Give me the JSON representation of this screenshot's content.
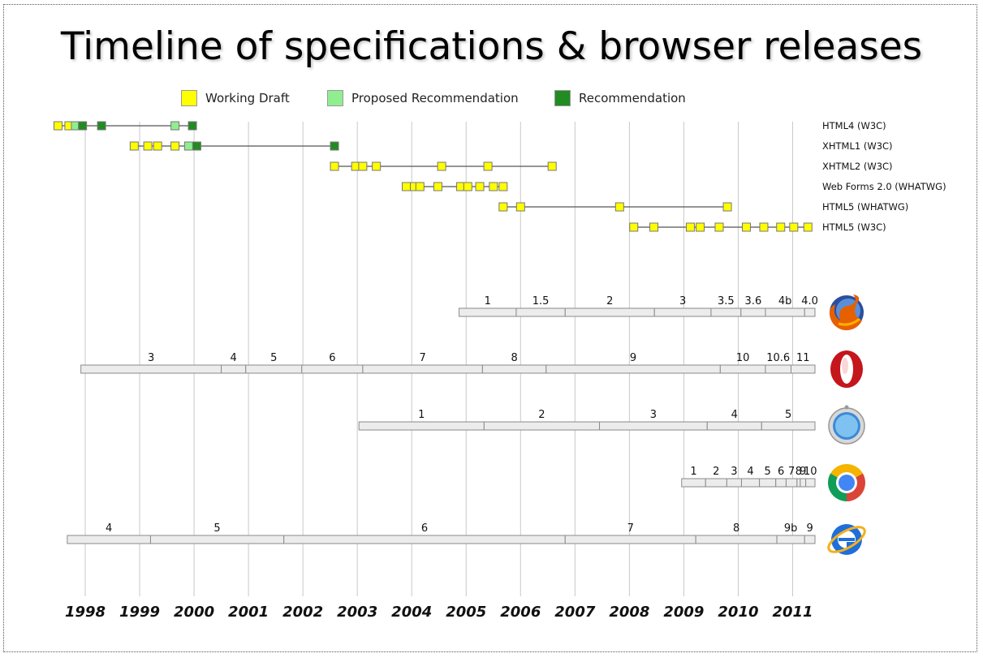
{
  "title": "Timeline of specifications & browser releases",
  "legend": [
    {
      "label": "Working Draft",
      "color": "#ffff00"
    },
    {
      "label": "Proposed Recommendation",
      "color": "#90ee90"
    },
    {
      "label": "Recommendation",
      "color": "#228b22"
    }
  ],
  "chart_data": {
    "type": "timeline",
    "x_axis": {
      "ticks": [
        "1998",
        "1999",
        "2000",
        "2001",
        "2002",
        "2003",
        "2004",
        "2005",
        "2006",
        "2007",
        "2008",
        "2009",
        "2010",
        "2011"
      ],
      "range": [
        1997.5,
        2011.45
      ],
      "grid": true
    },
    "specifications": [
      {
        "name": "HTML4 (W3C)",
        "start": 1997.5,
        "end": 1999.97,
        "milestones": [
          {
            "date": 1997.5,
            "status": "Working Draft"
          },
          {
            "date": 1997.7,
            "status": "Working Draft"
          },
          {
            "date": 1997.82,
            "status": "Proposed Recommendation"
          },
          {
            "date": 1997.95,
            "status": "Recommendation"
          },
          {
            "date": 1998.3,
            "status": "Recommendation"
          },
          {
            "date": 1999.65,
            "status": "Proposed Recommendation"
          },
          {
            "date": 1999.97,
            "status": "Recommendation"
          }
        ]
      },
      {
        "name": "XHTML1 (W3C)",
        "start": 1998.9,
        "end": 2002.58,
        "milestones": [
          {
            "date": 1998.9,
            "status": "Working Draft"
          },
          {
            "date": 1999.15,
            "status": "Working Draft"
          },
          {
            "date": 1999.33,
            "status": "Working Draft"
          },
          {
            "date": 1999.65,
            "status": "Working Draft"
          },
          {
            "date": 1999.9,
            "status": "Proposed Recommendation"
          },
          {
            "date": 2000.05,
            "status": "Recommendation"
          },
          {
            "date": 2002.58,
            "status": "Recommendation"
          }
        ]
      },
      {
        "name": "XHTML2 (W3C)",
        "start": 2002.58,
        "end": 2006.58,
        "milestones": [
          {
            "date": 2002.58,
            "status": "Working Draft"
          },
          {
            "date": 2002.97,
            "status": "Working Draft"
          },
          {
            "date": 2003.1,
            "status": "Working Draft"
          },
          {
            "date": 2003.35,
            "status": "Working Draft"
          },
          {
            "date": 2004.55,
            "status": "Working Draft"
          },
          {
            "date": 2005.4,
            "status": "Working Draft"
          },
          {
            "date": 2006.58,
            "status": "Working Draft"
          }
        ]
      },
      {
        "name": "Web Forms 2.0 (WHATWG)",
        "start": 2003.9,
        "end": 2005.68,
        "milestones": [
          {
            "date": 2003.9,
            "status": "Working Draft"
          },
          {
            "date": 2004.05,
            "status": "Working Draft"
          },
          {
            "date": 2004.15,
            "status": "Working Draft"
          },
          {
            "date": 2004.48,
            "status": "Working Draft"
          },
          {
            "date": 2004.9,
            "status": "Working Draft"
          },
          {
            "date": 2005.03,
            "status": "Working Draft"
          },
          {
            "date": 2005.25,
            "status": "Working Draft"
          },
          {
            "date": 2005.5,
            "status": "Working Draft"
          },
          {
            "date": 2005.68,
            "status": "Working Draft"
          }
        ]
      },
      {
        "name": "HTML5 (WHATWG)",
        "start": 2005.68,
        "end": 2009.8,
        "milestones": [
          {
            "date": 2005.68,
            "status": "Working Draft"
          },
          {
            "date": 2006.0,
            "status": "Working Draft"
          },
          {
            "date": 2007.82,
            "status": "Working Draft"
          },
          {
            "date": 2009.8,
            "status": "Working Draft"
          }
        ]
      },
      {
        "name": "HTML5 (W3C)",
        "start": 2008.08,
        "end": 2011.28,
        "milestones": [
          {
            "date": 2008.08,
            "status": "Working Draft"
          },
          {
            "date": 2008.45,
            "status": "Working Draft"
          },
          {
            "date": 2009.12,
            "status": "Working Draft"
          },
          {
            "date": 2009.3,
            "status": "Working Draft"
          },
          {
            "date": 2009.65,
            "status": "Working Draft"
          },
          {
            "date": 2010.15,
            "status": "Working Draft"
          },
          {
            "date": 2010.47,
            "status": "Working Draft"
          },
          {
            "date": 2010.78,
            "status": "Working Draft"
          },
          {
            "date": 2011.02,
            "status": "Working Draft"
          },
          {
            "date": 2011.28,
            "status": "Working Draft"
          }
        ]
      }
    ],
    "browsers": [
      {
        "icon": "firefox-icon",
        "releases": [
          {
            "version": "1",
            "start": 2004.87
          },
          {
            "version": "1.5",
            "start": 2005.92
          },
          {
            "version": "2",
            "start": 2006.82
          },
          {
            "version": "3",
            "start": 2008.46
          },
          {
            "version": "3.5",
            "start": 2009.5
          },
          {
            "version": "3.6",
            "start": 2010.05
          },
          {
            "version": "4b",
            "start": 2010.5
          },
          {
            "version": "4.0",
            "start": 2011.22
          }
        ]
      },
      {
        "icon": "opera-icon",
        "releases": [
          {
            "version": "3",
            "start": 1997.92
          },
          {
            "version": "4",
            "start": 2000.5
          },
          {
            "version": "5",
            "start": 2000.95
          },
          {
            "version": "6",
            "start": 2001.98
          },
          {
            "version": "7",
            "start": 2003.1
          },
          {
            "version": "8",
            "start": 2005.3
          },
          {
            "version": "9",
            "start": 2006.47
          },
          {
            "version": "10",
            "start": 2009.67
          },
          {
            "version": "10.6",
            "start": 2010.5
          },
          {
            "version": "11",
            "start": 2010.97
          }
        ]
      },
      {
        "icon": "safari-icon",
        "releases": [
          {
            "version": "1",
            "start": 2003.03
          },
          {
            "version": "2",
            "start": 2005.33
          },
          {
            "version": "3",
            "start": 2007.45
          },
          {
            "version": "4",
            "start": 2009.43
          },
          {
            "version": "5",
            "start": 2010.43
          }
        ]
      },
      {
        "icon": "chrome-icon",
        "releases": [
          {
            "version": "1",
            "start": 2008.96
          },
          {
            "version": "2",
            "start": 2009.4
          },
          {
            "version": "3",
            "start": 2009.79
          },
          {
            "version": "4",
            "start": 2010.06
          },
          {
            "version": "5",
            "start": 2010.39
          },
          {
            "version": "6",
            "start": 2010.69
          },
          {
            "version": "7",
            "start": 2010.88
          },
          {
            "version": "8",
            "start": 2011.08
          },
          {
            "version": "9",
            "start": 2011.14
          },
          {
            "version": "10",
            "start": 2011.24
          }
        ]
      },
      {
        "icon": "ie-icon",
        "releases": [
          {
            "version": "4",
            "start": 1997.67
          },
          {
            "version": "5",
            "start": 1999.2
          },
          {
            "version": "6",
            "start": 2001.65
          },
          {
            "version": "7",
            "start": 2006.82
          },
          {
            "version": "8",
            "start": 2009.22
          },
          {
            "version": "9b",
            "start": 2010.71
          },
          {
            "version": "9",
            "start": 2011.22
          }
        ]
      }
    ]
  }
}
